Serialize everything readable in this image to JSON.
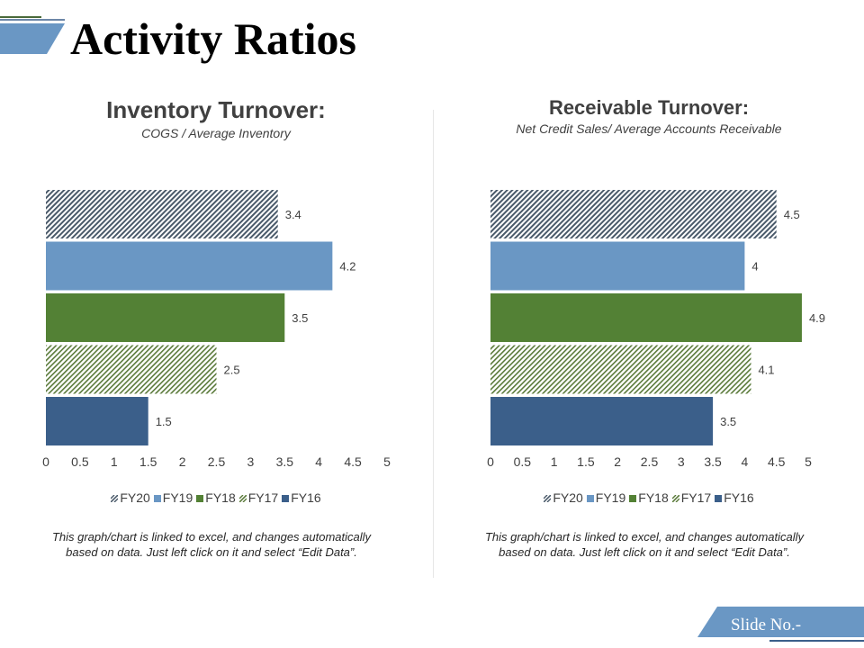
{
  "page": {
    "title": "Activity Ratios",
    "slide_no": "Slide No.-"
  },
  "colors": {
    "fy20": "#4a5a6a",
    "fy19": "#6a97c4",
    "fy18": "#538135",
    "fy17": "#5a7a3a",
    "fy16": "#3b5f8a",
    "accent": "#6c8ebf"
  },
  "charts": [
    {
      "title": "Inventory Turnover:",
      "subtitle": "COGS / Average Inventory",
      "note": "This graph/chart is linked to excel, and changes automatically based on data. Just left click on it and select “Edit Data”."
    },
    {
      "title": "Receivable Turnover:",
      "subtitle": "Net Credit Sales/ Average Accounts Receivable",
      "note": "This graph/chart is linked to excel, and changes automatically based on data. Just left click on it and select “Edit Data”."
    }
  ],
  "chart_data": [
    {
      "type": "bar",
      "orientation": "horizontal",
      "title": "Inventory Turnover:",
      "subtitle": "COGS / Average Inventory",
      "categories": [
        "FY20",
        "FY19",
        "FY18",
        "FY17",
        "FY16"
      ],
      "values": [
        3.4,
        4.2,
        3.5,
        2.5,
        1.5
      ],
      "labels": [
        "3.4",
        "4.2",
        "3.5",
        "2.5",
        "1.5"
      ],
      "xlim": [
        0,
        5
      ],
      "ticks": [
        "0",
        "0.5",
        "1",
        "1.5",
        "2",
        "2.5",
        "3",
        "3.5",
        "4",
        "4.5",
        "5"
      ],
      "legend": [
        "FY20",
        "FY19",
        "FY18",
        "FY17",
        "FY16"
      ],
      "legend_position": "bottom",
      "grid": false
    },
    {
      "type": "bar",
      "orientation": "horizontal",
      "title": "Receivable Turnover:",
      "subtitle": "Net Credit Sales/ Average Accounts Receivable",
      "categories": [
        "FY20",
        "FY19",
        "FY18",
        "FY17",
        "FY16"
      ],
      "values": [
        4.5,
        4,
        4.9,
        4.1,
        3.5
      ],
      "labels": [
        "4.5",
        "4",
        "4.9",
        "4.1",
        "3.5"
      ],
      "xlim": [
        0,
        5
      ],
      "ticks": [
        "0",
        "0.5",
        "1",
        "1.5",
        "2",
        "2.5",
        "3",
        "3.5",
        "4",
        "4.5",
        "5"
      ],
      "legend": [
        "FY20",
        "FY19",
        "FY18",
        "FY17",
        "FY16"
      ],
      "legend_position": "bottom",
      "grid": false
    }
  ]
}
